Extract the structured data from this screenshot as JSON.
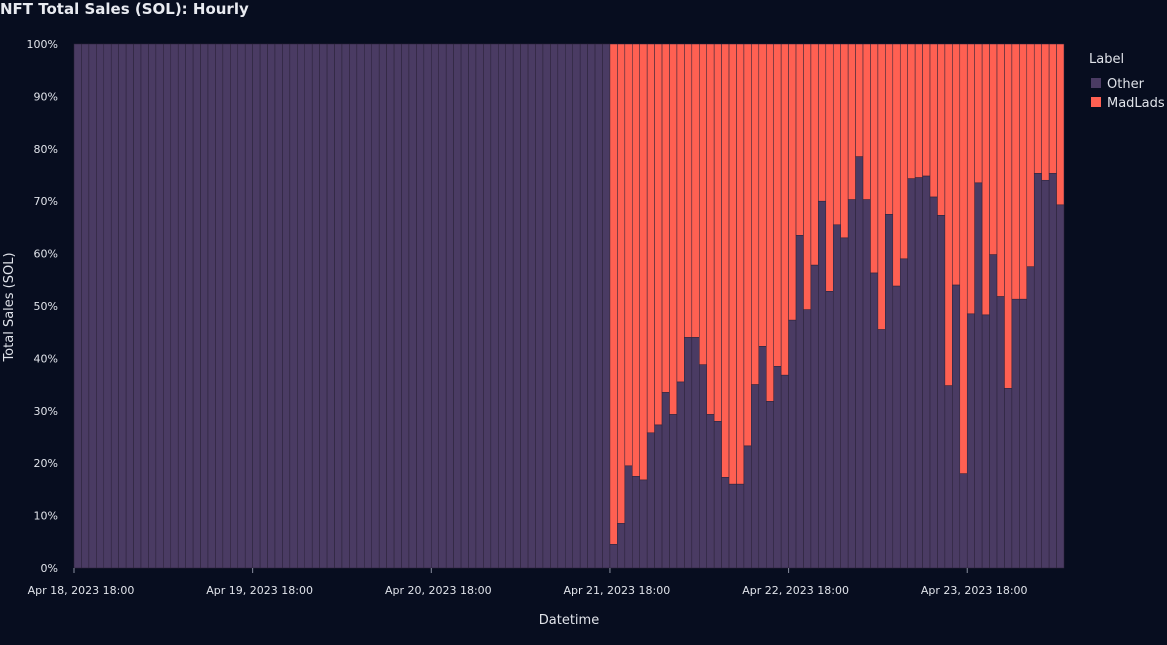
{
  "chart_data": {
    "type": "bar",
    "stacked": true,
    "normalized": true,
    "title": "NFT Total Sales (SOL): Hourly",
    "xlabel": "Datetime",
    "ylabel": "Total Sales (SOL)",
    "ylim": [
      0,
      100
    ],
    "y_ticks": [
      "0%",
      "10%",
      "20%",
      "30%",
      "40%",
      "50%",
      "60%",
      "70%",
      "80%",
      "90%",
      "100%"
    ],
    "x_tick_labels": [
      "Apr 18, 2023 18:00",
      "Apr 19, 2023 18:00",
      "Apr 20, 2023 18:00",
      "Apr 21, 2023 18:00",
      "Apr 22, 2023 18:00",
      "Apr 23, 2023 18:00"
    ],
    "x_start": "2023-04-18 18:00",
    "x_step": "1 hour",
    "legend_title": "Label",
    "legend_position": "right",
    "grid": false,
    "series": [
      {
        "name": "Other",
        "color": "#4a3b63"
      },
      {
        "name": "MadLads",
        "color": "#ff6052"
      }
    ],
    "other_pct": [
      100,
      100,
      100,
      100,
      100,
      100,
      100,
      100,
      100,
      100,
      100,
      100,
      100,
      100,
      100,
      100,
      100,
      100,
      100,
      100,
      100,
      100,
      100,
      100,
      100,
      100,
      100,
      100,
      100,
      100,
      100,
      100,
      100,
      100,
      100,
      100,
      100,
      100,
      100,
      100,
      100,
      100,
      100,
      100,
      100,
      100,
      100,
      100,
      100,
      100,
      100,
      100,
      100,
      100,
      100,
      100,
      100,
      100,
      100,
      100,
      100,
      100,
      100,
      100,
      100,
      100,
      100,
      100,
      100,
      100,
      100,
      100,
      4.5,
      8.5,
      19.5,
      17.5,
      16.8,
      25.8,
      27.3,
      33.5,
      29.3,
      35.5,
      44,
      44,
      38.8,
      29.3,
      28,
      17.3,
      16,
      16,
      23.3,
      35,
      42.3,
      31.8,
      38.5,
      36.8,
      47.3,
      63.5,
      49.3,
      57.8,
      70,
      52.8,
      65.5,
      63,
      70.3,
      78.5,
      70.3,
      56.3,
      45.5,
      67.5,
      53.8,
      59,
      74.3,
      74.5,
      74.8,
      70.8,
      67.3,
      34.8,
      54,
      18,
      48.5,
      73.5,
      48.3,
      59.8,
      51.8,
      34.3,
      51.3,
      51.3,
      57.5,
      75.3,
      74,
      75.3,
      69.3
    ]
  }
}
